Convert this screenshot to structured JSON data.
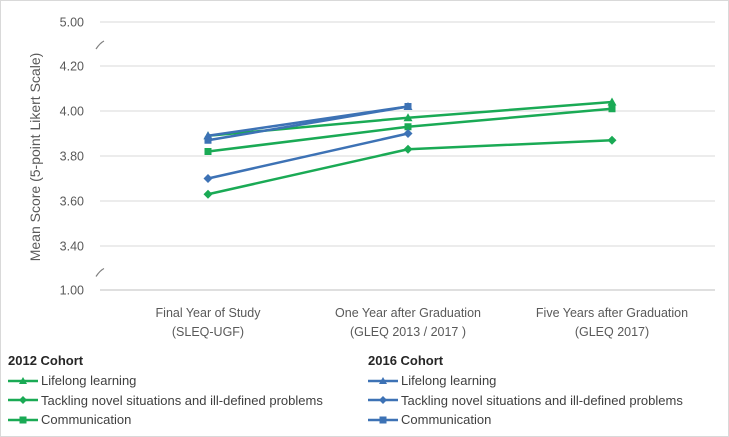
{
  "chart_data": {
    "type": "line",
    "xlabel": "",
    "ylabel": "Mean Score (5-point Likert Scale)",
    "ylim": [
      1.0,
      5.0
    ],
    "axis_break": {
      "low": 1.0,
      "high": 5.0,
      "continuous_range": [
        3.2,
        4.3
      ]
    },
    "yticks": [
      "1.00",
      "3.40",
      "3.60",
      "3.80",
      "4.00",
      "4.20",
      "5.00"
    ],
    "ytick_values": [
      1.0,
      3.4,
      3.6,
      3.8,
      4.0,
      4.2,
      5.0
    ],
    "grid": true,
    "categories": [
      {
        "line1": "Final Year of Study",
        "line2": "(SLEQ-UGF)"
      },
      {
        "line1": "One Year after Graduation",
        "line2": "(GLEQ 2013 / 2017 )"
      },
      {
        "line1": "Five Years after Graduation",
        "line2": "(GLEQ 2017)"
      }
    ],
    "legend_placement": "bottom",
    "groups": [
      {
        "title": "2012 Cohort",
        "color": "#1aaa55",
        "series": [
          {
            "name": "Lifelong learning",
            "marker": "triangle",
            "values": [
              3.89,
              3.97,
              4.04
            ]
          },
          {
            "name": "Tackling novel situations and ill-defined problems",
            "marker": "diamond",
            "values": [
              3.63,
              3.83,
              3.87
            ]
          },
          {
            "name": "Communication",
            "marker": "square",
            "values": [
              3.82,
              3.93,
              4.01
            ]
          }
        ]
      },
      {
        "title": "2016 Cohort",
        "color": "#3d72b5",
        "series": [
          {
            "name": "Lifelong learning",
            "marker": "triangle",
            "values": [
              3.89,
              4.02,
              null
            ]
          },
          {
            "name": "Tackling novel situations and ill-defined problems",
            "marker": "diamond",
            "values": [
              3.7,
              3.9,
              null
            ]
          },
          {
            "name": "Communication",
            "marker": "square",
            "values": [
              3.87,
              4.02,
              null
            ]
          }
        ]
      }
    ]
  }
}
